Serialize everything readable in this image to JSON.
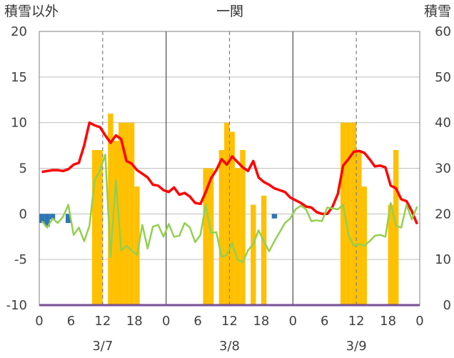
{
  "chart_data": {
    "type": "bar+line",
    "title": "一関",
    "left_axis_label": "積雪以外",
    "right_axis_label": "積雪",
    "left_ylim": [
      -10,
      20
    ],
    "left_ticks": [
      "20",
      "15",
      "10",
      "5",
      "0",
      "-5",
      "-10"
    ],
    "right_ylim": [
      0,
      60
    ],
    "right_ticks": [
      "60",
      "50",
      "40",
      "30",
      "20",
      "10",
      "0"
    ],
    "x_range_hours": [
      0,
      72
    ],
    "x_tick_labels": [
      "0",
      "6",
      "12",
      "18",
      "0",
      "6",
      "12",
      "18",
      "0",
      "6",
      "12",
      "18",
      "0"
    ],
    "date_labels": [
      "3/7",
      "3/8",
      "3/9"
    ],
    "grid": "dashed vertical at 12h, solid vertical at day boundaries",
    "colors": {
      "snow_depth_bars": "#FFC000",
      "precip_bars": "#2E75B6",
      "temperature_line": "#FF0000",
      "green_line": "#92D050",
      "baseline_line": "#7030A0"
    },
    "series": [
      {
        "name": "",
        "kind": "bar_right_axis",
        "color": "#FFC000",
        "x": [
          10,
          11,
          13,
          14,
          15,
          16,
          17,
          18,
          31,
          32,
          34,
          35,
          36,
          37,
          38,
          40,
          42,
          57,
          58,
          59,
          60,
          61,
          66,
          67
        ],
        "values": [
          34,
          34,
          42,
          36,
          40,
          40,
          40,
          26,
          30,
          30,
          34,
          40,
          38,
          30,
          34,
          22,
          24,
          40,
          40,
          40,
          34,
          26,
          22,
          34
        ]
      },
      {
        "name": "",
        "kind": "bar_left_axis",
        "color": "#2E75B6",
        "x": [
          0,
          1,
          2,
          5,
          44
        ],
        "values": [
          -1.0,
          -1.4,
          -0.6,
          -1.0,
          -0.5
        ]
      },
      {
        "name": "",
        "kind": "line_left_axis",
        "color": "#FF0000",
        "x": [
          0,
          1,
          2,
          3,
          4,
          5,
          6,
          7,
          8,
          9,
          10,
          11,
          12,
          13,
          14,
          15,
          16,
          17,
          18,
          19,
          20,
          21,
          22,
          23,
          24,
          25,
          26,
          27,
          28,
          29,
          30,
          31,
          32,
          33,
          34,
          35,
          36,
          37,
          38,
          39,
          40,
          41,
          42,
          43,
          44,
          45,
          46,
          47,
          48,
          49,
          50,
          51,
          52,
          53,
          54,
          55,
          56,
          57,
          58,
          59,
          60,
          61,
          62,
          63,
          64,
          65,
          66,
          67,
          68,
          69,
          70,
          71
        ],
        "values": [
          4.6,
          4.7,
          4.8,
          4.8,
          4.7,
          4.9,
          5.4,
          5.6,
          7.5,
          10.0,
          9.7,
          9.5,
          8.6,
          7.8,
          8.6,
          8.2,
          5.8,
          5.5,
          4.8,
          4.4,
          4.0,
          3.2,
          3.1,
          2.6,
          2.4,
          2.9,
          2.1,
          2.3,
          1.9,
          1.2,
          1.1,
          2.4,
          3.9,
          4.8,
          6.0,
          5.4,
          6.3,
          5.7,
          5.1,
          4.7,
          5.8,
          4.0,
          3.5,
          3.2,
          2.8,
          2.6,
          2.4,
          1.8,
          1.5,
          1.2,
          0.8,
          0.7,
          0.2,
          0.0,
          0.0,
          0.8,
          2.2,
          5.3,
          6.0,
          6.8,
          6.9,
          6.7,
          6.0,
          5.2,
          5.3,
          5.1,
          3.1,
          2.8,
          1.6,
          1.4,
          0.3,
          -1.1
        ]
      },
      {
        "name": "",
        "kind": "line_left_axis",
        "color": "#92D050",
        "x": [
          0,
          1,
          2,
          3,
          4,
          5,
          6,
          7,
          8,
          9,
          10,
          11,
          12,
          13,
          14,
          15,
          16,
          17,
          18,
          19,
          20,
          21,
          22,
          23,
          24,
          25,
          26,
          27,
          28,
          29,
          30,
          31,
          32,
          33,
          34,
          35,
          36,
          37,
          38,
          39,
          40,
          41,
          42,
          43,
          44,
          45,
          46,
          47,
          48,
          49,
          50,
          51,
          52,
          53,
          54,
          55,
          56,
          57,
          58,
          59,
          60,
          61,
          62,
          63,
          64,
          65,
          66,
          67,
          68,
          69,
          70,
          71
        ],
        "values": [
          -0.8,
          -1.5,
          -0.5,
          -1.0,
          -0.3,
          1.0,
          -2.3,
          -1.5,
          -3.0,
          -1.3,
          3.7,
          4.8,
          6.5,
          -4.7,
          3.7,
          -4.0,
          -3.5,
          -4.0,
          -4.5,
          -1.2,
          -3.8,
          -1.4,
          -1.2,
          -2.5,
          -1.1,
          -2.5,
          -2.4,
          -1.0,
          -1.5,
          -3.1,
          -2.3,
          1.0,
          -2.1,
          -2.0,
          -4.7,
          -4.5,
          -3.2,
          -5.0,
          -5.3,
          -4.0,
          -3.3,
          -1.8,
          -3.0,
          -4.1,
          -3.0,
          -2.0,
          -1.0,
          -0.5,
          0.5,
          0.9,
          0.5,
          -0.8,
          -0.7,
          -0.8,
          0.7,
          0.6,
          0.5,
          1.0,
          -2.3,
          -3.5,
          -3.3,
          -3.5,
          -3.0,
          -2.4,
          -2.3,
          -2.5,
          1.2,
          -1.3,
          -1.5,
          1.0,
          -0.6,
          0.8
        ]
      },
      {
        "name": "",
        "kind": "line_left_axis",
        "color": "#7030A0",
        "x": [
          0,
          72
        ],
        "values": [
          -10,
          -10
        ]
      }
    ]
  }
}
